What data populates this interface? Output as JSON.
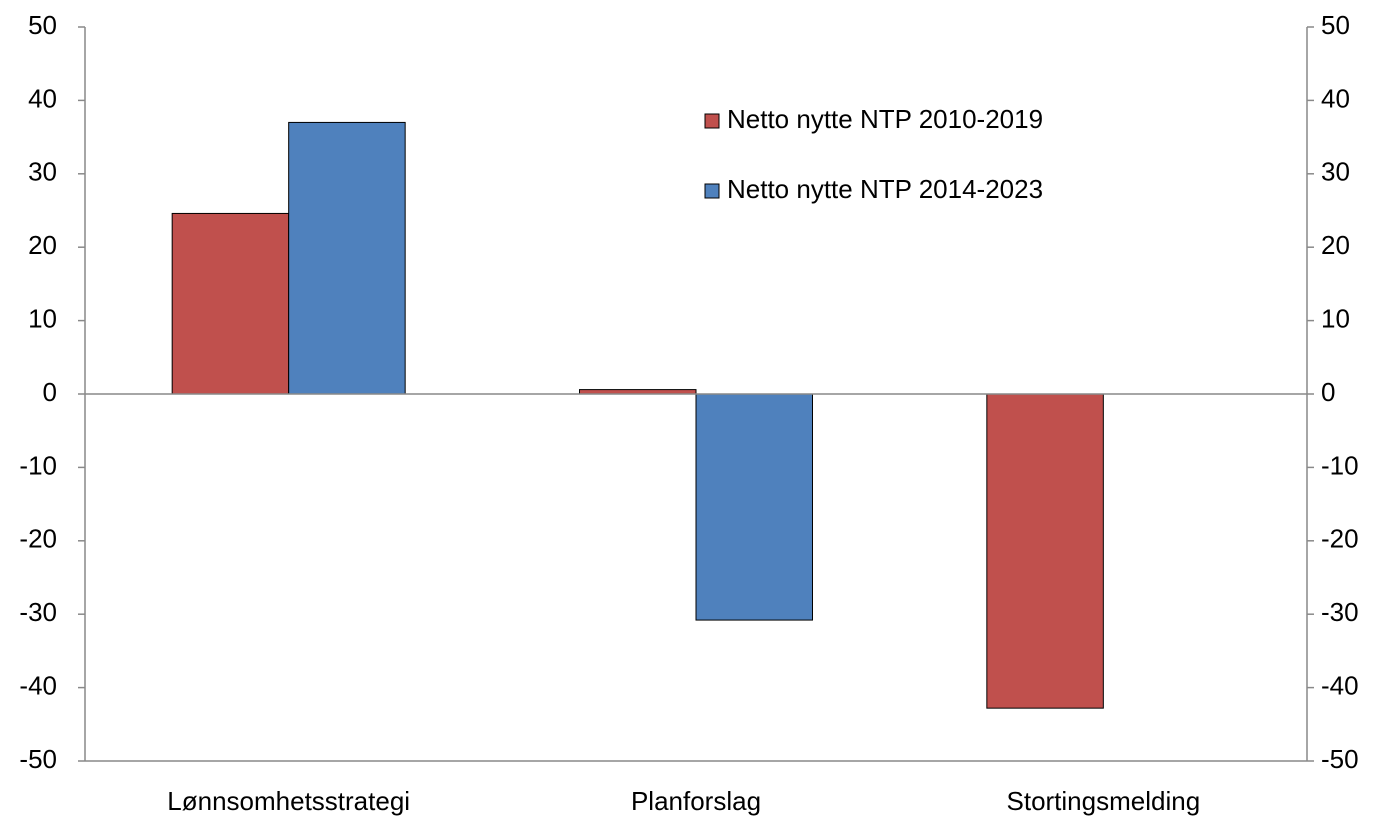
{
  "chart_data": {
    "type": "bar",
    "categories": [
      "Lønnsomhetsstrategi",
      "Planforslag",
      "Stortingsmelding"
    ],
    "series": [
      {
        "name": "Netto nytte NTP 2010-2019",
        "color": "#c0504d",
        "values": [
          24.6,
          0.6,
          -42.8
        ]
      },
      {
        "name": "Netto nytte NTP 2014-2023",
        "color": "#4f81bd",
        "values": [
          37,
          -30.8,
          null
        ]
      }
    ],
    "ylim": [
      -50,
      50
    ],
    "yticks": [
      -50,
      -40,
      -30,
      -20,
      -10,
      0,
      10,
      20,
      30,
      40,
      50
    ],
    "y2lim": [
      -50,
      50
    ],
    "y2ticks": [
      -50,
      -40,
      -30,
      -20,
      -10,
      0,
      10,
      20,
      30,
      40,
      50
    ],
    "grid": false,
    "legend": "upper right"
  }
}
